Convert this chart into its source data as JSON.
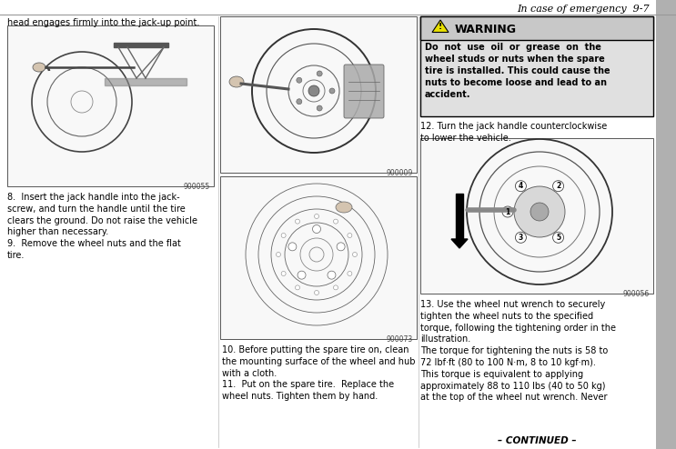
{
  "page_header": "In case of emergency  9-7",
  "col1_intro_text": "head engages firmly into the jack-up point.",
  "col1_img1_code": "900055",
  "col1_text8": "8.  Insert the jack handle into the jack-\nscrew, and turn the handle until the tire\nclears the ground. Do not raise the vehicle\nhigher than necessary.\n9.  Remove the wheel nuts and the flat\ntire.",
  "col2_img1_code": "900009",
  "col2_img2_code": "900073",
  "col2_text10": "10. Before putting the spare tire on, clean\nthe mounting surface of the wheel and hub\nwith a cloth.\n11.  Put on the spare tire.  Replace the\nwheel nuts. Tighten them by hand.",
  "warning_title": "WARNING",
  "warning_text": "Do  not  use  oil  or  grease  on  the\nwheel studs or nuts when the spare\ntire is installed. This could cause the\nnuts to become loose and lead to an\naccident.",
  "col3_text12": "12. Turn the jack handle counterclockwise\nto lower the vehicle.",
  "col3_img_code": "900056",
  "col3_text13": "13. Use the wheel nut wrench to securely\ntighten the wheel nuts to the specified\ntorque, following the tightening order in the\nillustration.\nThe torque for tightening the nuts is 58 to\n72 lbf·ft (80 to 100 N·m, 8 to 10 kgf·m).\nThis torque is equivalent to applying\napproximately 88 to 110 lbs (40 to 50 kg)\nat the top of the wheel nut wrench. Never",
  "footer": "– CONTINUED –",
  "bg_color": "#ffffff",
  "text_color": "#000000",
  "header_line_color": "#999999",
  "warning_bg": "#e0e0e0",
  "warning_hdr_bg": "#c8c8c8",
  "sidebar_color": "#b0b0b0",
  "img_bg": "#f8f8f8",
  "img_border": "#555555",
  "code_color": "#444444"
}
